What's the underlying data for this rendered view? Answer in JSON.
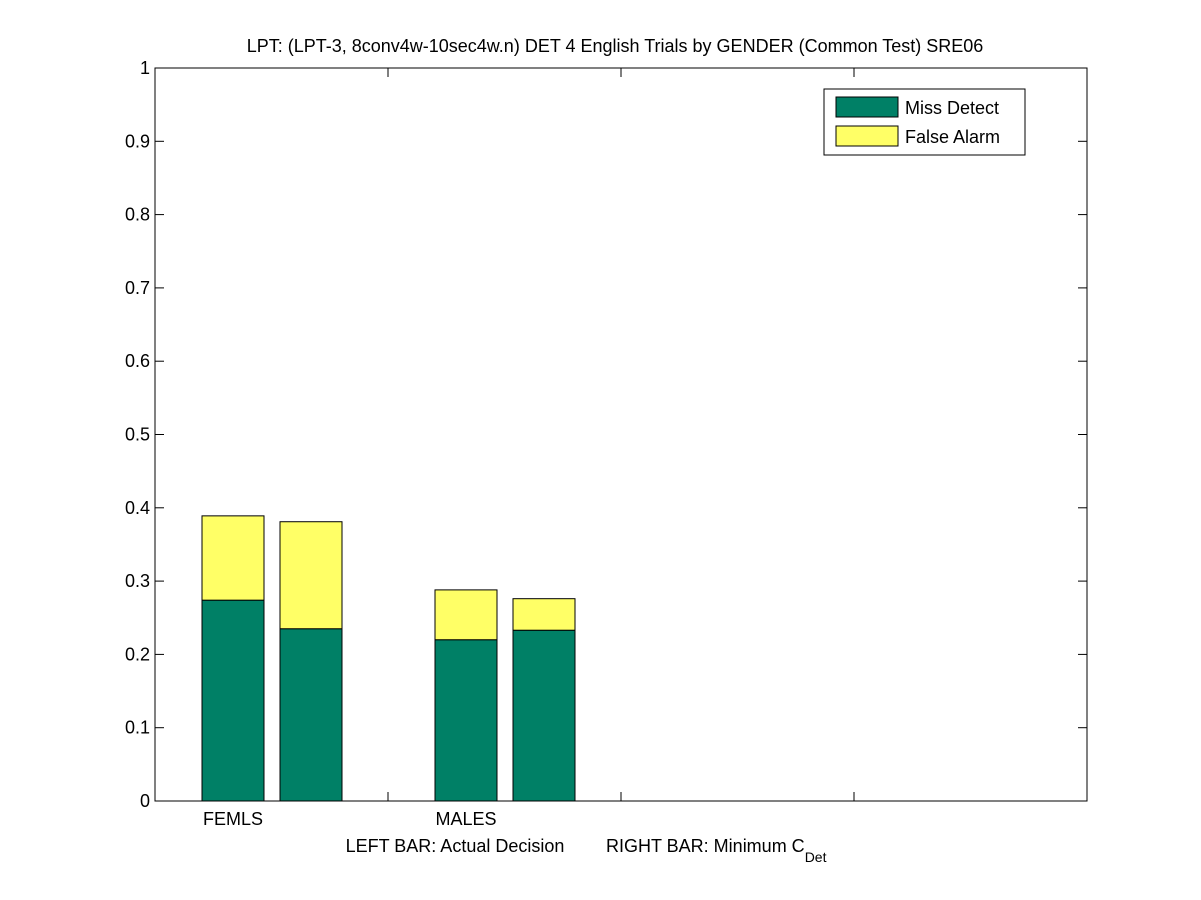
{
  "chart_data": {
    "type": "bar",
    "stacked": true,
    "title": "LPT: (LPT-3, 8conv4w-10sec4w.n) DET 4 English Trials by GENDER (Common Test) SRE06",
    "categories": [
      "FEMLS",
      "MALES"
    ],
    "bars_per_category": [
      "Actual Decision",
      "Minimum C_Det"
    ],
    "series": [
      {
        "name": "Miss Detect",
        "color": "#008066",
        "values": [
          [
            0.274,
            0.235
          ],
          [
            0.22,
            0.233
          ]
        ]
      },
      {
        "name": "False Alarm",
        "color": "#ffff66",
        "values": [
          [
            0.115,
            0.146
          ],
          [
            0.068,
            0.043
          ]
        ]
      }
    ],
    "xlabel": {
      "left": "LEFT BAR: Actual Decision",
      "right_main": "RIGHT BAR: Minimum C",
      "right_sub": "Det"
    },
    "ylim": [
      0,
      1
    ],
    "yticks": [
      "0",
      "0.1",
      "0.2",
      "0.3",
      "0.4",
      "0.5",
      "0.6",
      "0.7",
      "0.8",
      "0.9",
      "1"
    ],
    "legend_position": "top-right",
    "grid": false
  }
}
